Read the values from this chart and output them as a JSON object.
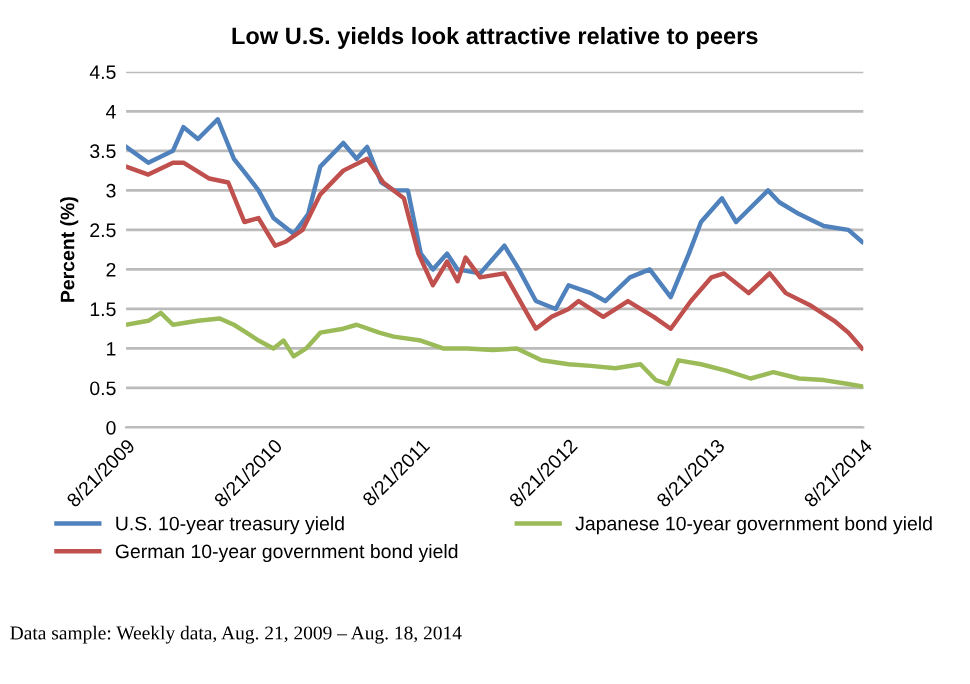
{
  "chart_data": {
    "type": "line",
    "title": "Low U.S. yields look attractive relative to peers",
    "ylabel": "Percent (%)",
    "xlim": [
      "2009-08-21",
      "2014-08-21"
    ],
    "xticks": [
      {
        "value": "2009-08-21",
        "label": "8/21/2009"
      },
      {
        "value": "2010-08-21",
        "label": "8/21/2010"
      },
      {
        "value": "2011-08-21",
        "label": "8/21/2011"
      },
      {
        "value": "2012-08-21",
        "label": "8/21/2012"
      },
      {
        "value": "2013-08-21",
        "label": "8/21/2013"
      },
      {
        "value": "2014-08-21",
        "label": "8/21/2014"
      }
    ],
    "ylim": [
      0,
      4.5
    ],
    "yticks": [
      0,
      0.5,
      1,
      1.5,
      2,
      2.5,
      3,
      3.5,
      4,
      4.5
    ],
    "grid": "y",
    "legend": "bottom",
    "marker": "none",
    "line_style": "solid",
    "annotations": [
      "Data sample: Weekly data, Aug. 21, 2009 – Aug. 18, 2014"
    ],
    "series": [
      {
        "name": "U.S. 10-year treasury yield",
        "color": "#4f81bd",
        "x": [
          "2009-08-21",
          "2009-10-15",
          "2009-12-15",
          "2010-01-10",
          "2010-02-15",
          "2010-04-05",
          "2010-05-15",
          "2010-06-15",
          "2010-07-15",
          "2010-08-21",
          "2010-10-10",
          "2010-11-15",
          "2010-12-15",
          "2011-02-10",
          "2011-03-15",
          "2011-04-10",
          "2011-05-15",
          "2011-06-15",
          "2011-07-20",
          "2011-08-21",
          "2011-09-20",
          "2011-10-25",
          "2011-11-20",
          "2012-01-15",
          "2012-03-15",
          "2012-04-20",
          "2012-06-01",
          "2012-07-20",
          "2012-08-21",
          "2012-10-15",
          "2012-11-20",
          "2013-01-20",
          "2013-03-10",
          "2013-05-01",
          "2013-06-15",
          "2013-07-15",
          "2013-09-05",
          "2013-10-10",
          "2013-12-28",
          "2014-01-25",
          "2014-03-15",
          "2014-05-15",
          "2014-07-15",
          "2014-08-18"
        ],
        "values": [
          3.55,
          3.35,
          3.5,
          3.8,
          3.65,
          3.9,
          3.4,
          3.2,
          3.0,
          2.65,
          2.45,
          2.7,
          3.3,
          3.6,
          3.4,
          3.55,
          3.1,
          3.0,
          3.0,
          2.2,
          2.0,
          2.2,
          2.0,
          1.95,
          2.3,
          2.0,
          1.6,
          1.5,
          1.8,
          1.7,
          1.6,
          1.9,
          2.0,
          1.65,
          2.2,
          2.6,
          2.9,
          2.6,
          3.0,
          2.85,
          2.7,
          2.55,
          2.5,
          2.35
        ]
      },
      {
        "name": "German 10-year government bond yield",
        "color": "#c0504d",
        "x": [
          "2009-08-21",
          "2009-10-15",
          "2009-12-15",
          "2010-01-10",
          "2010-03-15",
          "2010-05-01",
          "2010-06-10",
          "2010-07-15",
          "2010-08-25",
          "2010-09-20",
          "2010-11-01",
          "2010-12-15",
          "2011-02-10",
          "2011-04-10",
          "2011-05-20",
          "2011-07-10",
          "2011-08-15",
          "2011-09-20",
          "2011-10-25",
          "2011-11-20",
          "2011-12-10",
          "2012-01-15",
          "2012-03-15",
          "2012-05-15",
          "2012-06-01",
          "2012-07-10",
          "2012-08-21",
          "2012-09-15",
          "2012-11-15",
          "2013-01-15",
          "2013-03-20",
          "2013-05-01",
          "2013-06-20",
          "2013-08-10",
          "2013-09-10",
          "2013-11-10",
          "2014-01-01",
          "2014-02-10",
          "2014-04-10",
          "2014-06-10",
          "2014-07-15",
          "2014-08-18"
        ],
        "values": [
          3.3,
          3.2,
          3.35,
          3.35,
          3.15,
          3.1,
          2.6,
          2.65,
          2.3,
          2.35,
          2.5,
          2.95,
          3.25,
          3.4,
          3.1,
          2.9,
          2.2,
          1.8,
          2.1,
          1.85,
          2.15,
          1.9,
          1.95,
          1.4,
          1.25,
          1.4,
          1.5,
          1.6,
          1.4,
          1.6,
          1.4,
          1.25,
          1.6,
          1.9,
          1.95,
          1.7,
          1.95,
          1.7,
          1.55,
          1.35,
          1.2,
          1.0
        ]
      },
      {
        "name": "Japanese 10-year government bond yield",
        "color": "#9bbb59",
        "x": [
          "2009-08-21",
          "2009-10-15",
          "2009-11-15",
          "2009-12-15",
          "2010-02-15",
          "2010-04-10",
          "2010-05-15",
          "2010-06-15",
          "2010-07-15",
          "2010-08-21",
          "2010-09-15",
          "2010-10-10",
          "2010-11-10",
          "2010-12-15",
          "2011-02-10",
          "2011-03-15",
          "2011-05-10",
          "2011-06-15",
          "2011-08-21",
          "2011-10-15",
          "2011-12-15",
          "2012-02-15",
          "2012-04-15",
          "2012-06-15",
          "2012-08-21",
          "2012-10-15",
          "2012-12-15",
          "2013-02-15",
          "2013-03-25",
          "2013-04-25",
          "2013-05-20",
          "2013-07-15",
          "2013-09-15",
          "2013-11-15",
          "2014-01-10",
          "2014-03-15",
          "2014-05-15",
          "2014-07-15",
          "2014-08-18"
        ],
        "values": [
          1.3,
          1.35,
          1.45,
          1.3,
          1.35,
          1.38,
          1.3,
          1.2,
          1.1,
          1.0,
          1.1,
          0.9,
          1.0,
          1.2,
          1.25,
          1.3,
          1.2,
          1.15,
          1.1,
          1.0,
          1.0,
          0.98,
          1.0,
          0.85,
          0.8,
          0.78,
          0.75,
          0.8,
          0.6,
          0.55,
          0.85,
          0.8,
          0.72,
          0.62,
          0.7,
          0.62,
          0.6,
          0.55,
          0.52
        ]
      }
    ]
  }
}
